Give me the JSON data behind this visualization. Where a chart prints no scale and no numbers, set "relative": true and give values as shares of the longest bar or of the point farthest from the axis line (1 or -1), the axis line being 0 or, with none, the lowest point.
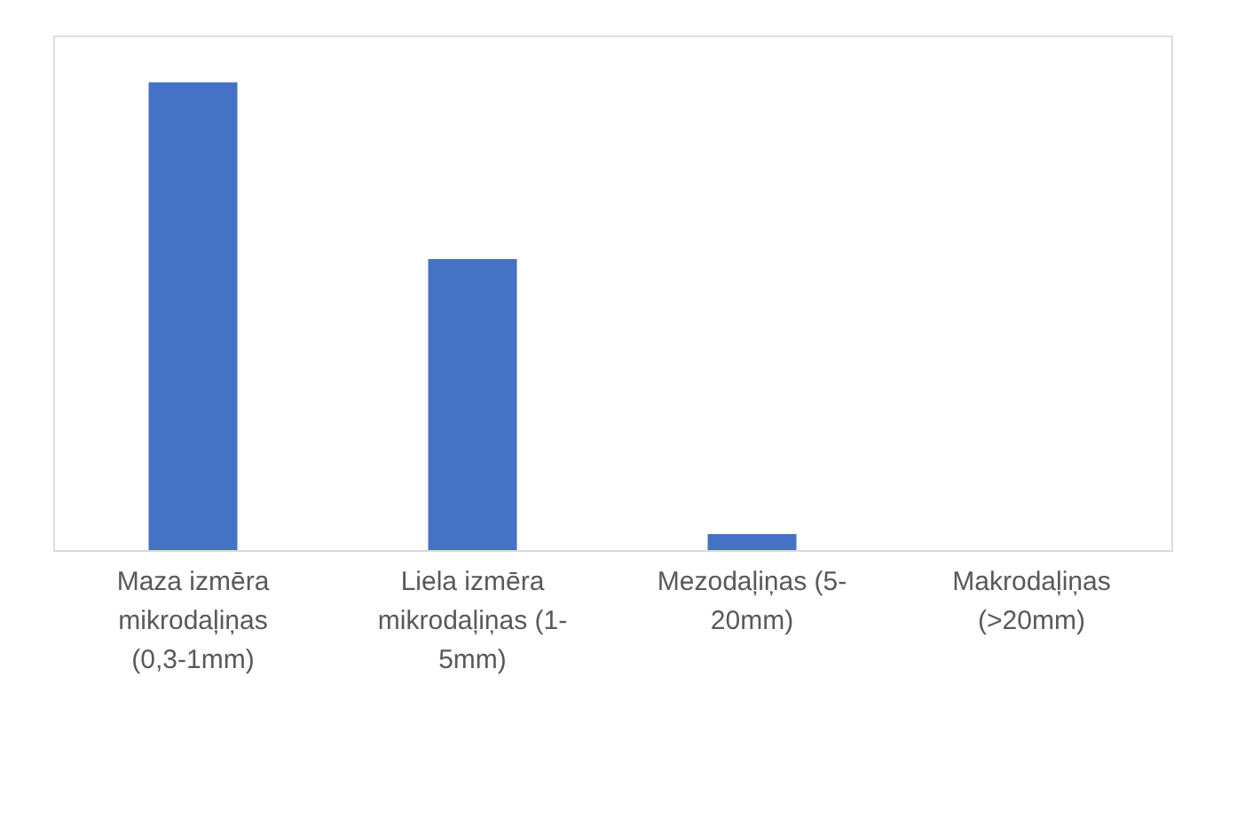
{
  "chart_data": {
    "type": "bar",
    "relative": true,
    "categories": [
      "Maza izmēra mikrodaļiņas (0,3-1mm)",
      "Liela izmēra mikrodaļiņas (1-5mm)",
      "Mezodaļiņas (5-20mm)",
      "Makrodaļiņas (>20mm)"
    ],
    "values": [
      1,
      0.622,
      0.034,
      0
    ],
    "color": "#4472c4",
    "grid": false
  }
}
